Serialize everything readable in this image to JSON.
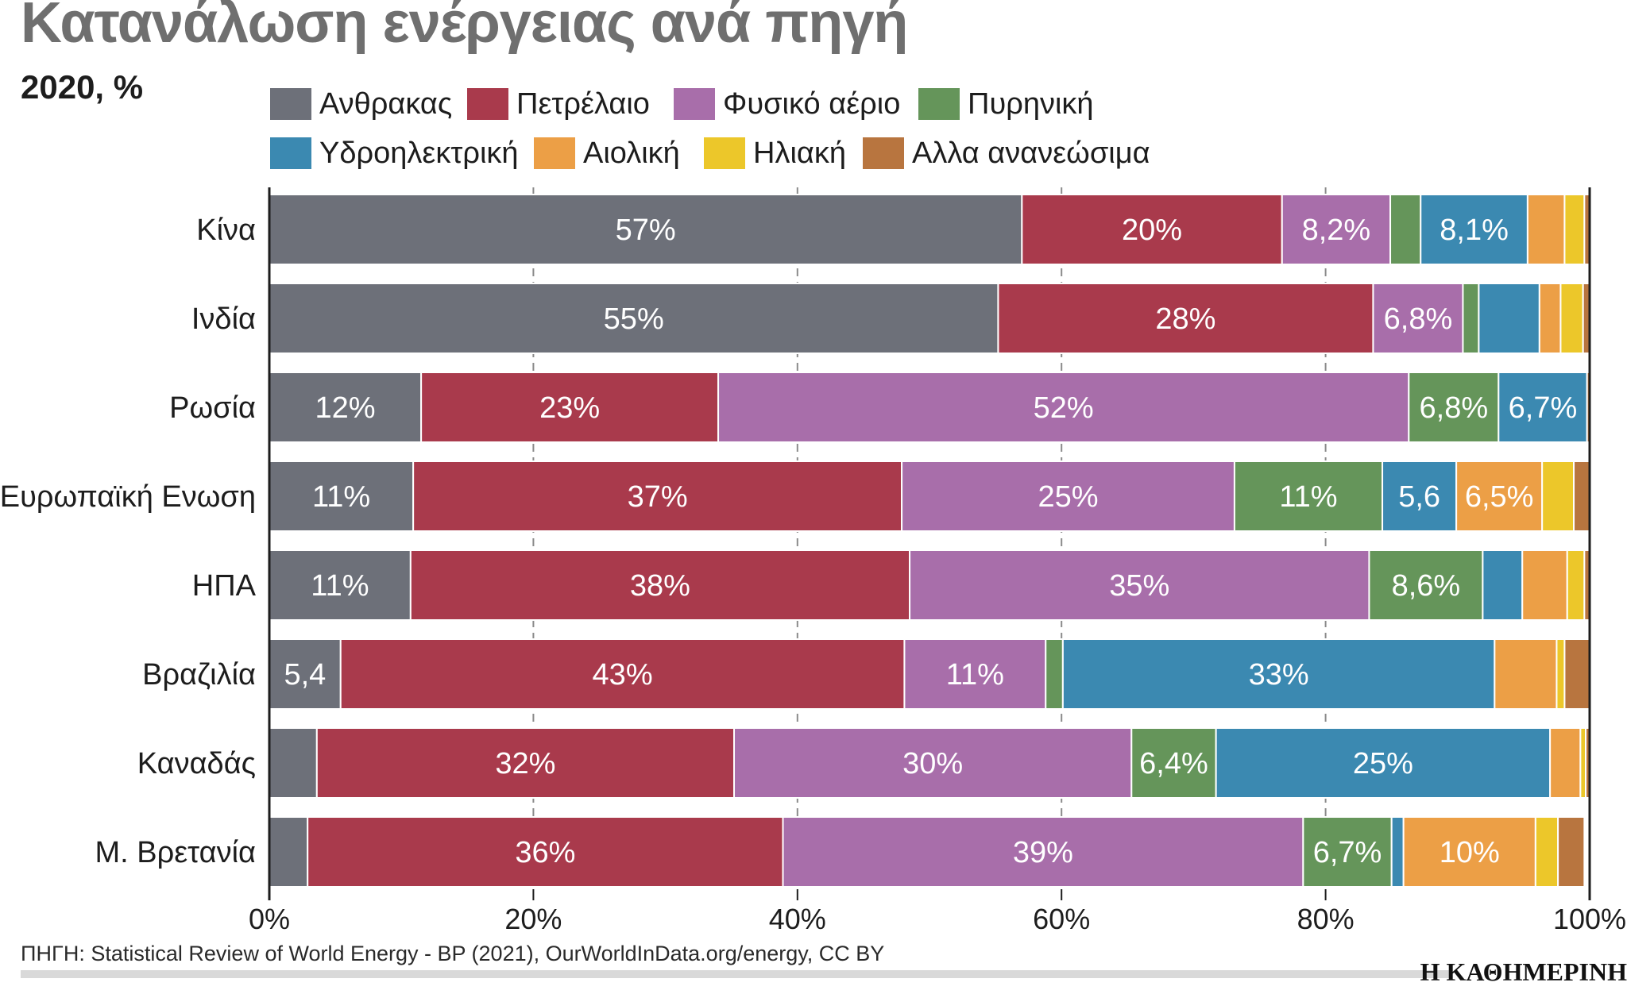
{
  "title": "Κατανάλωση ενέργειας ανά πηγή",
  "subtitle": "2020, %",
  "source": "ΠΗΓΗ: Statistical Review of World Energy - BP (2021), OurWorldInData.org/energy, CC BY",
  "brand": "Η ΚΑΘΗΜΕΡΙΝΗ",
  "colors": {
    "coal": "#6d7079",
    "oil": "#a93a4c",
    "gas": "#a86eaa",
    "nuclear": "#65955a",
    "hydro": "#3b89b1",
    "wind": "#ec9f46",
    "solar": "#ecc72a",
    "other": "#b8753f"
  },
  "chart_data": {
    "type": "bar",
    "orientation": "horizontal",
    "stacked": true,
    "xlim": [
      0,
      100
    ],
    "x_ticks": [
      "0%",
      "20%",
      "40%",
      "60%",
      "80%",
      "100%"
    ],
    "categories": [
      "Κίνα",
      "Ινδία",
      "Ρωσία",
      "Ευρωπαϊκή Ενωση",
      "ΗΠΑ",
      "Βραζιλία",
      "Καναδάς",
      "Μ. Βρετανία"
    ],
    "series": [
      {
        "key": "coal",
        "name": "Ανθρακας",
        "values": [
          57,
          55.2,
          11.5,
          10.9,
          10.7,
          5.4,
          3.6,
          2.9
        ],
        "labels": [
          "57%",
          "55%",
          "12%",
          "11%",
          "11%",
          "5,4",
          "",
          ""
        ]
      },
      {
        "key": "oil",
        "name": "Πετρέλαιο",
        "values": [
          19.7,
          28.4,
          22.5,
          37,
          37.8,
          42.7,
          31.6,
          36
        ],
        "labels": [
          "20%",
          "28%",
          "23%",
          "37%",
          "38%",
          "43%",
          "32%",
          "36%"
        ]
      },
      {
        "key": "gas",
        "name": "Φυσικό αέριο",
        "values": [
          8.2,
          6.8,
          52.3,
          25.2,
          34.8,
          10.7,
          30.1,
          39.4
        ],
        "labels": [
          "8,2%",
          "6,8%",
          "52%",
          "25%",
          "35%",
          "11%",
          "30%",
          "39%"
        ]
      },
      {
        "key": "nuclear",
        "name": "Πυρηνική",
        "values": [
          2.3,
          1.2,
          6.8,
          11.2,
          8.6,
          1.3,
          6.4,
          6.7
        ],
        "labels": [
          "",
          "",
          "6,8%",
          "11%",
          "8,6%",
          "",
          "6,4%",
          "6,7%"
        ]
      },
      {
        "key": "hydro",
        "name": "Υδροηλεκτρική",
        "values": [
          8.1,
          4.6,
          6.7,
          5.6,
          3,
          32.7,
          25.3,
          0.9
        ],
        "labels": [
          "8,1%",
          "",
          "6,7%",
          "5,6",
          "",
          "33%",
          "25%",
          ""
        ]
      },
      {
        "key": "wind",
        "name": "Αιολική",
        "values": [
          2.8,
          1.6,
          0,
          6.5,
          3.4,
          4.7,
          2.3,
          10
        ],
        "labels": [
          "",
          "",
          "",
          "6,5%",
          "",
          "",
          "",
          "10%"
        ]
      },
      {
        "key": "solar",
        "name": "Ηλιακή",
        "values": [
          1.5,
          1.7,
          0,
          2.4,
          1.3,
          0.6,
          0.4,
          1.7
        ],
        "labels": [
          "",
          "",
          "",
          "",
          "",
          "",
          "",
          ""
        ]
      },
      {
        "key": "other",
        "name": "Αλλα ανανεώσιμα",
        "values": [
          0.4,
          0.5,
          0.2,
          1.2,
          0.4,
          1.9,
          0.3,
          2
        ],
        "labels": [
          "",
          "",
          "",
          "",
          "",
          "",
          "",
          ""
        ]
      }
    ]
  }
}
